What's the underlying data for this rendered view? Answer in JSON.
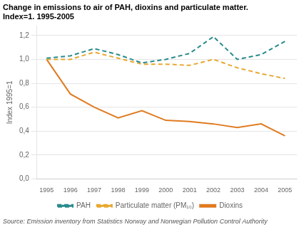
{
  "chart_data": {
    "type": "line",
    "title": "Change in emissions to air of PAH, dioxins and particulate matter.\nIndex=1. 1995-2005",
    "ylabel": "Index 1995=1",
    "source": "Source: Emission inventory from Statistics Norway and Norwegian Pollution Control Authority",
    "x": [
      1995,
      1996,
      1997,
      1998,
      1999,
      2000,
      2001,
      2002,
      2003,
      2004,
      2005
    ],
    "series": [
      {
        "name": "PAH",
        "color": "#2a8b8c",
        "line_style": "dashed",
        "marker": "none",
        "values": [
          1.01,
          1.03,
          1.09,
          1.04,
          0.97,
          1.0,
          1.05,
          1.19,
          1.0,
          1.04,
          1.15
        ]
      },
      {
        "name": "Particulate matter (PM₁₀)",
        "color": "#e8a830",
        "line_style": "dashed",
        "marker": "none",
        "values": [
          1.0,
          1.0,
          1.06,
          1.01,
          0.96,
          0.96,
          0.95,
          1.0,
          0.93,
          0.88,
          0.84
        ]
      },
      {
        "name": "Dioxins",
        "color": "#e07b20",
        "line_style": "solid",
        "marker": "none",
        "values": [
          1.0,
          0.71,
          0.6,
          0.51,
          0.57,
          0.49,
          0.48,
          0.46,
          0.43,
          0.46,
          0.36
        ]
      }
    ],
    "xlim": [
      1994.6,
      2005.5
    ],
    "xticks": [
      1995,
      1996,
      1997,
      1998,
      1999,
      2000,
      2001,
      2002,
      2003,
      2004,
      2005
    ],
    "ylim": [
      0.0,
      1.28
    ],
    "yticks": [
      {
        "value": 0.0,
        "label": "0,0"
      },
      {
        "value": 0.2,
        "label": "0,2"
      },
      {
        "value": 0.4,
        "label": "0,4"
      },
      {
        "value": 0.6,
        "label": "0,6"
      },
      {
        "value": 0.8,
        "label": "0,8"
      },
      {
        "value": 1.0,
        "label": "1,0"
      },
      {
        "value": 1.2,
        "label": "1,2"
      }
    ],
    "grid": "y",
    "legend": "bottom"
  }
}
